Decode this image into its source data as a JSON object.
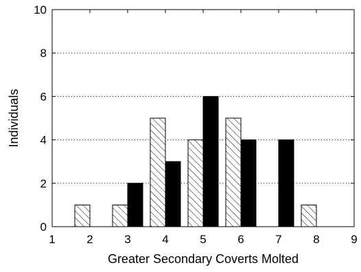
{
  "chart_data": {
    "type": "bar",
    "title": "",
    "xlabel": "Greater Secondary Coverts Molted",
    "ylabel": "Individuals",
    "xlim": [
      1,
      9
    ],
    "ylim": [
      0,
      10
    ],
    "x_ticks": [
      "1",
      "2",
      "3",
      "4",
      "5",
      "6",
      "7",
      "8",
      "9"
    ],
    "y_ticks": [
      "0",
      "2",
      "4",
      "6",
      "8",
      "10"
    ],
    "grid": "dotted horizontal lines at y ticks",
    "legend": "none",
    "series": [
      {
        "style": "hatched",
        "color": "#ffffff",
        "x": [
          2,
          3,
          4,
          5,
          6,
          7,
          8
        ],
        "values": [
          1,
          1,
          5,
          4,
          5,
          0,
          1
        ]
      },
      {
        "style": "solid",
        "color": "#000000",
        "x": [
          2,
          3,
          4,
          5,
          6,
          7,
          8
        ],
        "values": [
          0,
          2,
          3,
          6,
          4,
          4,
          0
        ]
      }
    ]
  }
}
